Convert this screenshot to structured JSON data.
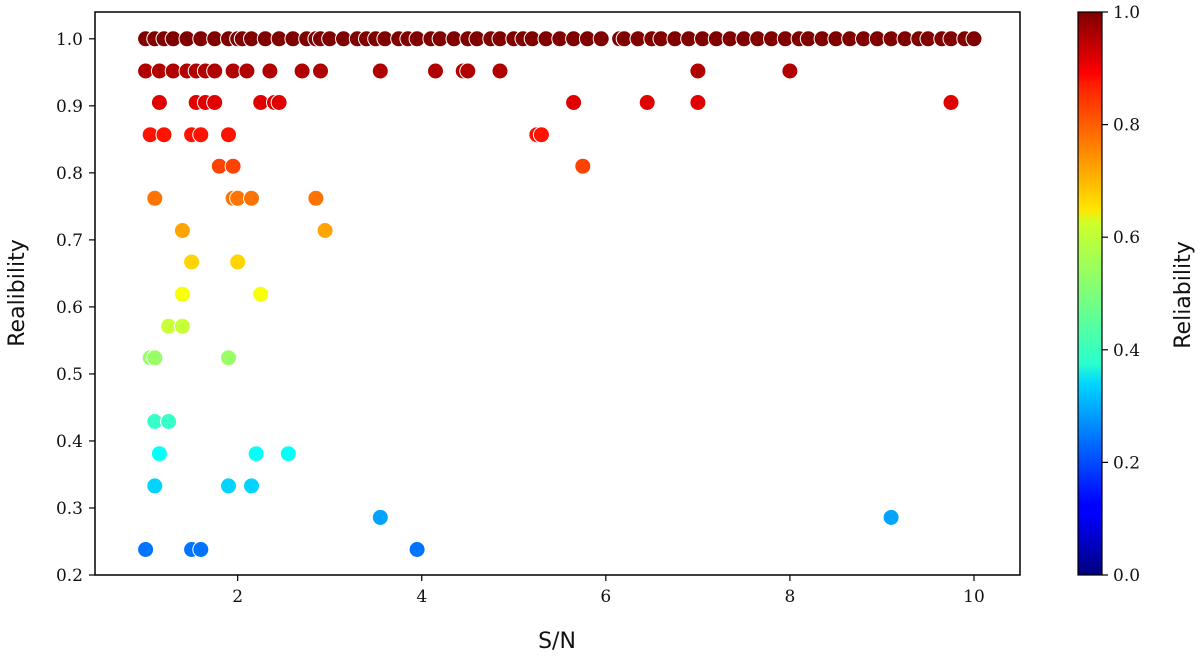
{
  "chart_data": {
    "type": "scatter",
    "xlabel": "S/N",
    "ylabel": "Realibility",
    "colorbar_label": "Reliability",
    "xlim": [
      0.45,
      10.5
    ],
    "ylim": [
      0.2,
      1.04
    ],
    "x_ticks": [
      2,
      4,
      6,
      8,
      10
    ],
    "y_ticks": [
      0.2,
      0.3,
      0.4,
      0.5,
      0.6,
      0.7,
      0.8,
      0.9,
      1.0
    ],
    "colorbar": {
      "colormap": "jet",
      "range": [
        0.0,
        1.0
      ],
      "ticks": [
        0.0,
        0.2,
        0.4,
        0.6,
        0.8,
        1.0
      ]
    },
    "grid": false,
    "marker_edge_color": "#ffffff",
    "points": [
      {
        "x": 1.0,
        "y": 1.0
      },
      {
        "x": 1.1,
        "y": 1.0
      },
      {
        "x": 1.2,
        "y": 1.0
      },
      {
        "x": 1.3,
        "y": 1.0
      },
      {
        "x": 1.45,
        "y": 1.0
      },
      {
        "x": 1.6,
        "y": 1.0
      },
      {
        "x": 1.75,
        "y": 1.0
      },
      {
        "x": 1.9,
        "y": 1.0
      },
      {
        "x": 2.0,
        "y": 1.0
      },
      {
        "x": 2.05,
        "y": 1.0
      },
      {
        "x": 2.15,
        "y": 1.0
      },
      {
        "x": 2.3,
        "y": 1.0
      },
      {
        "x": 2.45,
        "y": 1.0
      },
      {
        "x": 2.6,
        "y": 1.0
      },
      {
        "x": 2.75,
        "y": 1.0
      },
      {
        "x": 2.85,
        "y": 1.0
      },
      {
        "x": 2.9,
        "y": 1.0
      },
      {
        "x": 3.0,
        "y": 1.0
      },
      {
        "x": 3.15,
        "y": 1.0
      },
      {
        "x": 3.3,
        "y": 1.0
      },
      {
        "x": 3.4,
        "y": 1.0
      },
      {
        "x": 3.5,
        "y": 1.0
      },
      {
        "x": 3.6,
        "y": 1.0
      },
      {
        "x": 3.75,
        "y": 1.0
      },
      {
        "x": 3.85,
        "y": 1.0
      },
      {
        "x": 3.95,
        "y": 1.0
      },
      {
        "x": 4.1,
        "y": 1.0
      },
      {
        "x": 4.2,
        "y": 1.0
      },
      {
        "x": 4.35,
        "y": 1.0
      },
      {
        "x": 4.5,
        "y": 1.0
      },
      {
        "x": 4.6,
        "y": 1.0
      },
      {
        "x": 4.75,
        "y": 1.0
      },
      {
        "x": 4.85,
        "y": 1.0
      },
      {
        "x": 5.0,
        "y": 1.0
      },
      {
        "x": 5.1,
        "y": 1.0
      },
      {
        "x": 5.2,
        "y": 1.0
      },
      {
        "x": 5.35,
        "y": 1.0
      },
      {
        "x": 5.5,
        "y": 1.0
      },
      {
        "x": 5.65,
        "y": 1.0
      },
      {
        "x": 5.8,
        "y": 1.0
      },
      {
        "x": 5.95,
        "y": 1.0
      },
      {
        "x": 6.15,
        "y": 1.0
      },
      {
        "x": 6.2,
        "y": 1.0
      },
      {
        "x": 6.35,
        "y": 1.0
      },
      {
        "x": 6.5,
        "y": 1.0
      },
      {
        "x": 6.6,
        "y": 1.0
      },
      {
        "x": 6.75,
        "y": 1.0
      },
      {
        "x": 6.9,
        "y": 1.0
      },
      {
        "x": 7.05,
        "y": 1.0
      },
      {
        "x": 7.2,
        "y": 1.0
      },
      {
        "x": 7.35,
        "y": 1.0
      },
      {
        "x": 7.5,
        "y": 1.0
      },
      {
        "x": 7.65,
        "y": 1.0
      },
      {
        "x": 7.8,
        "y": 1.0
      },
      {
        "x": 7.95,
        "y": 1.0
      },
      {
        "x": 8.1,
        "y": 1.0
      },
      {
        "x": 8.2,
        "y": 1.0
      },
      {
        "x": 8.35,
        "y": 1.0
      },
      {
        "x": 8.5,
        "y": 1.0
      },
      {
        "x": 8.65,
        "y": 1.0
      },
      {
        "x": 8.8,
        "y": 1.0
      },
      {
        "x": 8.95,
        "y": 1.0
      },
      {
        "x": 9.1,
        "y": 1.0
      },
      {
        "x": 9.25,
        "y": 1.0
      },
      {
        "x": 9.4,
        "y": 1.0
      },
      {
        "x": 9.5,
        "y": 1.0
      },
      {
        "x": 9.65,
        "y": 1.0
      },
      {
        "x": 9.75,
        "y": 1.0
      },
      {
        "x": 9.9,
        "y": 1.0
      },
      {
        "x": 10.0,
        "y": 1.0
      },
      {
        "x": 1.0,
        "y": 0.952
      },
      {
        "x": 1.15,
        "y": 0.952
      },
      {
        "x": 1.3,
        "y": 0.952
      },
      {
        "x": 1.45,
        "y": 0.952
      },
      {
        "x": 1.55,
        "y": 0.952
      },
      {
        "x": 1.65,
        "y": 0.952
      },
      {
        "x": 1.75,
        "y": 0.952
      },
      {
        "x": 1.95,
        "y": 0.952
      },
      {
        "x": 2.1,
        "y": 0.952
      },
      {
        "x": 2.35,
        "y": 0.952
      },
      {
        "x": 2.7,
        "y": 0.952
      },
      {
        "x": 2.9,
        "y": 0.952
      },
      {
        "x": 3.55,
        "y": 0.952
      },
      {
        "x": 4.15,
        "y": 0.952
      },
      {
        "x": 4.45,
        "y": 0.952
      },
      {
        "x": 4.5,
        "y": 0.952
      },
      {
        "x": 4.85,
        "y": 0.952
      },
      {
        "x": 7.0,
        "y": 0.952
      },
      {
        "x": 8.0,
        "y": 0.952
      },
      {
        "x": 1.15,
        "y": 0.905
      },
      {
        "x": 1.55,
        "y": 0.905
      },
      {
        "x": 1.65,
        "y": 0.905
      },
      {
        "x": 1.75,
        "y": 0.905
      },
      {
        "x": 2.25,
        "y": 0.905
      },
      {
        "x": 2.4,
        "y": 0.905
      },
      {
        "x": 2.45,
        "y": 0.905
      },
      {
        "x": 5.65,
        "y": 0.905
      },
      {
        "x": 6.45,
        "y": 0.905
      },
      {
        "x": 7.0,
        "y": 0.905
      },
      {
        "x": 9.75,
        "y": 0.905
      },
      {
        "x": 1.05,
        "y": 0.857
      },
      {
        "x": 1.2,
        "y": 0.857
      },
      {
        "x": 1.5,
        "y": 0.857
      },
      {
        "x": 1.6,
        "y": 0.857
      },
      {
        "x": 1.9,
        "y": 0.857
      },
      {
        "x": 5.25,
        "y": 0.857
      },
      {
        "x": 5.3,
        "y": 0.857
      },
      {
        "x": 1.8,
        "y": 0.81
      },
      {
        "x": 1.95,
        "y": 0.81
      },
      {
        "x": 5.75,
        "y": 0.81
      },
      {
        "x": 1.1,
        "y": 0.762
      },
      {
        "x": 1.95,
        "y": 0.762
      },
      {
        "x": 2.0,
        "y": 0.762
      },
      {
        "x": 2.15,
        "y": 0.762
      },
      {
        "x": 2.85,
        "y": 0.762
      },
      {
        "x": 1.4,
        "y": 0.714
      },
      {
        "x": 2.95,
        "y": 0.714
      },
      {
        "x": 1.5,
        "y": 0.667
      },
      {
        "x": 2.0,
        "y": 0.667
      },
      {
        "x": 1.4,
        "y": 0.619
      },
      {
        "x": 2.25,
        "y": 0.619
      },
      {
        "x": 1.25,
        "y": 0.571
      },
      {
        "x": 1.4,
        "y": 0.571
      },
      {
        "x": 1.05,
        "y": 0.524
      },
      {
        "x": 1.1,
        "y": 0.524
      },
      {
        "x": 1.9,
        "y": 0.524
      },
      {
        "x": 1.1,
        "y": 0.429
      },
      {
        "x": 1.25,
        "y": 0.429
      },
      {
        "x": 1.15,
        "y": 0.381
      },
      {
        "x": 2.2,
        "y": 0.381
      },
      {
        "x": 2.55,
        "y": 0.381
      },
      {
        "x": 1.1,
        "y": 0.333
      },
      {
        "x": 1.9,
        "y": 0.333
      },
      {
        "x": 2.15,
        "y": 0.333
      },
      {
        "x": 3.55,
        "y": 0.286
      },
      {
        "x": 9.1,
        "y": 0.286
      },
      {
        "x": 1.0,
        "y": 0.238
      },
      {
        "x": 1.5,
        "y": 0.238
      },
      {
        "x": 1.6,
        "y": 0.238
      },
      {
        "x": 3.95,
        "y": 0.238
      }
    ]
  }
}
